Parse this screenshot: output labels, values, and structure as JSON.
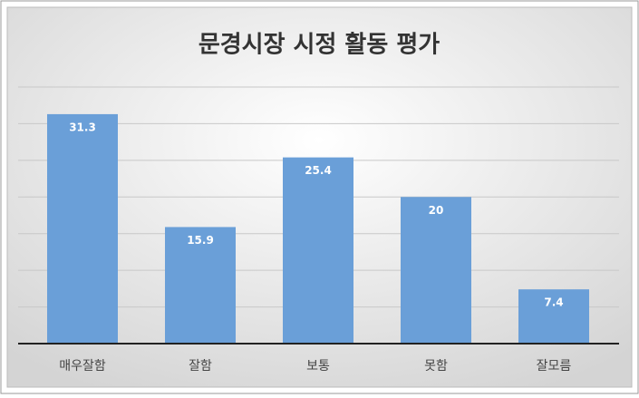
{
  "chart_data": {
    "type": "bar",
    "title": "문경시장 시정 활동 평가",
    "categories": [
      "매우잘함",
      "잘함",
      "보통",
      "못함",
      "잘모름"
    ],
    "values": [
      31.3,
      15.9,
      25.4,
      20,
      7.4
    ],
    "color": "#6a9fd8",
    "ylim": [
      0,
      35
    ],
    "yticks": [
      0,
      5,
      10,
      15,
      20,
      25,
      30,
      35
    ],
    "grid": true
  }
}
